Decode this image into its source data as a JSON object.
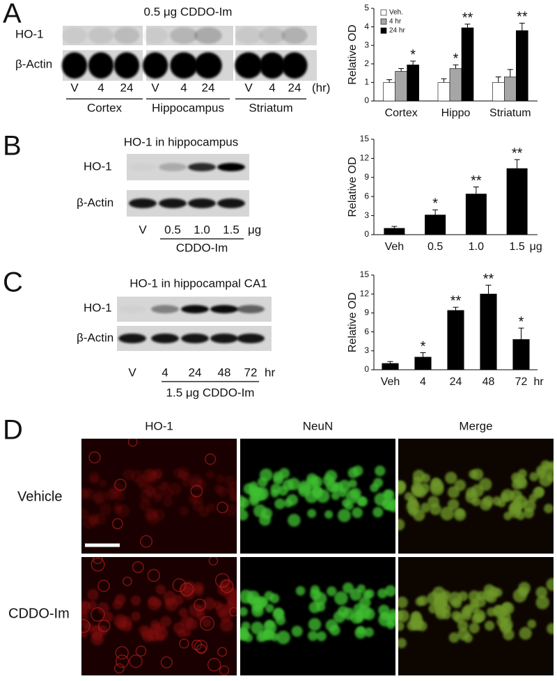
{
  "panel_labels": [
    "A",
    "B",
    "C",
    "D"
  ],
  "blots": [
    {
      "title": "0.5 μg CDDO-Im",
      "rows": [
        "HO-1",
        "β-Actin"
      ],
      "lanes": [
        "V",
        "4",
        "24",
        "V",
        "4",
        "24",
        "V",
        "4",
        "24"
      ],
      "unit": "(hr)",
      "groups": [
        "Cortex",
        "Hippocampus",
        "Striatum"
      ]
    },
    {
      "title": "HO-1 in hippocampus",
      "rows": [
        "HO-1",
        "β-Actin"
      ],
      "lanes": [
        "V",
        "0.5",
        "1.0",
        "1.5"
      ],
      "unit": "μg",
      "groups": [
        "CDDO-Im"
      ]
    },
    {
      "title": "HO-1 in hippocampal CA1",
      "rows": [
        "HO-1",
        "β-Actin"
      ],
      "lanes": [
        "V",
        "4",
        "24",
        "48",
        "72"
      ],
      "unit": "hr",
      "groups": [
        "1.5 μg CDDO-Im"
      ]
    }
  ],
  "chart_data": [
    {
      "type": "bar",
      "ylabel": "Relative OD",
      "categories": [
        "Cortex",
        "Hippo",
        "Striatum"
      ],
      "series": [
        {
          "name": "Veh.",
          "color": "#ffffff",
          "values": [
            1.0,
            1.0,
            1.0
          ],
          "errors": [
            0.15,
            0.2,
            0.3
          ],
          "significance": [
            null,
            null,
            null
          ]
        },
        {
          "name": "4 hr",
          "color": "#a6a6a6",
          "values": [
            1.6,
            1.75,
            1.3
          ],
          "errors": [
            0.15,
            0.2,
            0.4
          ],
          "significance": [
            null,
            "*",
            null
          ]
        },
        {
          "name": "24 hr",
          "color": "#000000",
          "values": [
            1.95,
            3.95,
            3.8
          ],
          "errors": [
            0.2,
            0.2,
            0.4
          ],
          "significance": [
            "*",
            "**",
            "**"
          ]
        }
      ],
      "ylim": [
        0,
        5
      ],
      "yticks": [
        0,
        1,
        2,
        3,
        4,
        5
      ],
      "legend": "upper-left"
    },
    {
      "type": "bar",
      "ylabel": "Relative OD",
      "categories": [
        "Veh",
        "0.5",
        "1.0",
        "1.5"
      ],
      "x_unit": "μg",
      "series": [
        {
          "color": "#000000",
          "values": [
            1.0,
            3.1,
            6.4,
            10.4
          ],
          "errors": [
            0.3,
            0.8,
            1.1,
            1.4
          ],
          "significance": [
            null,
            "*",
            "**",
            "**"
          ]
        }
      ],
      "ylim": [
        0,
        15
      ],
      "yticks": [
        0,
        3,
        6,
        9,
        12,
        15
      ]
    },
    {
      "type": "bar",
      "ylabel": "Relative OD",
      "categories": [
        "Veh",
        "4",
        "24",
        "48",
        "72"
      ],
      "x_unit": "hr",
      "series": [
        {
          "color": "#000000",
          "values": [
            1.0,
            2.0,
            9.4,
            12.0,
            4.8
          ],
          "errors": [
            0.3,
            0.7,
            0.5,
            1.4,
            1.8
          ],
          "significance": [
            null,
            "*",
            "**",
            "**",
            "*"
          ]
        }
      ],
      "ylim": [
        0,
        15
      ],
      "yticks": [
        0,
        3,
        6,
        9,
        12,
        15
      ]
    }
  ],
  "micrographs": {
    "columns": [
      "HO-1",
      "NeuN",
      "Merge"
    ],
    "rows": [
      "Vehicle",
      "CDDO-Im"
    ]
  }
}
